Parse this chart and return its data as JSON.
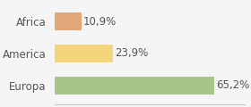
{
  "categories": [
    "Africa",
    "America",
    "Europa"
  ],
  "values": [
    10.9,
    23.9,
    65.2
  ],
  "labels": [
    "10,9%",
    "23,9%",
    "65,2%"
  ],
  "colors": [
    "#e0a878",
    "#f5d57a",
    "#a8c48a"
  ],
  "background_color": "#f5f5f5",
  "xlim": [
    0,
    78
  ],
  "bar_height": 0.55,
  "label_fontsize": 8.5,
  "tick_fontsize": 8.5
}
